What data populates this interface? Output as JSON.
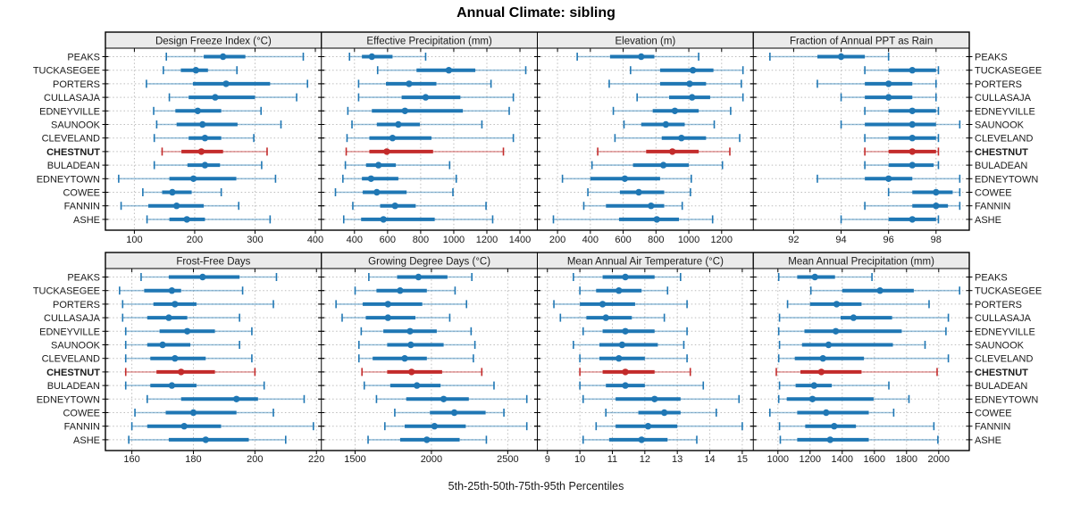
{
  "title": "Annual Climate: sibling",
  "caption": "5th-25th-50th-75th-95th Percentiles",
  "sites": [
    "PEAKS",
    "TUCKASEGEE",
    "PORTERS",
    "CULLASAJA",
    "EDNEYVILLE",
    "SAUNOOK",
    "CLEVELAND",
    "CHESTNUT",
    "BULADEAN",
    "EDNEYTOWN",
    "COWEE",
    "FANNIN",
    "ASHE"
  ],
  "highlight_site": "CHESTNUT",
  "colors": {
    "series": "#1f77b4",
    "series_whisker": "rgba(31,119,180,0.45)",
    "highlight": "#c32b2b",
    "highlight_whisker": "rgba(195,43,43,0.45)",
    "strip_bg": "#ebebeb",
    "strip_border": "#000000",
    "panel_border": "#000000",
    "grid": "#bdbdbd",
    "tick_text": "#1a1a1a"
  },
  "chart_data": {
    "type": "interval-dotplot",
    "percentiles": [
      5,
      25,
      50,
      75,
      95
    ],
    "site_order": [
      "PEAKS",
      "TUCKASEGEE",
      "PORTERS",
      "CULLASAJA",
      "EDNEYVILLE",
      "SAUNOOK",
      "CLEVELAND",
      "CHESTNUT",
      "BULADEAN",
      "EDNEYTOWN",
      "COWEE",
      "FANNIN",
      "ASHE"
    ],
    "panels": [
      {
        "title": "Design Freeze Index (°C)",
        "row": "top",
        "ticks": [
          100,
          200,
          300,
          400
        ],
        "domain": [
          52,
          410
        ],
        "values": [
          [
            153,
            215,
            247,
            284,
            380
          ],
          [
            148,
            177,
            202,
            222,
            270
          ],
          [
            120,
            197,
            252,
            325,
            387
          ],
          [
            158,
            190,
            234,
            300,
            369
          ],
          [
            132,
            168,
            205,
            244,
            310
          ],
          [
            137,
            170,
            213,
            271,
            343
          ],
          [
            133,
            190,
            217,
            244,
            298
          ],
          [
            146,
            178,
            211,
            247,
            320
          ],
          [
            133,
            188,
            217,
            242,
            311
          ],
          [
            74,
            158,
            198,
            269,
            334
          ],
          [
            114,
            146,
            163,
            195,
            244
          ],
          [
            78,
            123,
            170,
            215,
            273
          ],
          [
            121,
            158,
            187,
            217,
            325
          ]
        ]
      },
      {
        "title": "Effective Precipitation (mm)",
        "row": "top",
        "ticks": [
          400,
          600,
          800,
          1000,
          1200,
          1400
        ],
        "domain": [
          200,
          1505
        ],
        "values": [
          [
            370,
            445,
            505,
            630,
            830
          ],
          [
            540,
            775,
            970,
            1130,
            1435
          ],
          [
            425,
            590,
            730,
            895,
            1225
          ],
          [
            425,
            685,
            830,
            1040,
            1360
          ],
          [
            360,
            505,
            705,
            1055,
            1335
          ],
          [
            385,
            535,
            665,
            795,
            1170
          ],
          [
            355,
            490,
            630,
            865,
            1360
          ],
          [
            350,
            490,
            595,
            875,
            1300
          ],
          [
            345,
            470,
            545,
            650,
            975
          ],
          [
            330,
            445,
            500,
            665,
            1015
          ],
          [
            285,
            450,
            535,
            715,
            995
          ],
          [
            390,
            555,
            645,
            770,
            1195
          ],
          [
            335,
            440,
            575,
            885,
            1235
          ]
        ]
      },
      {
        "title": "Elevation (m)",
        "row": "top",
        "ticks": [
          200,
          400,
          600,
          800,
          1000,
          1200
        ],
        "domain": [
          77,
          1393
        ],
        "values": [
          [
            320,
            520,
            710,
            790,
            1060
          ],
          [
            645,
            825,
            1025,
            1150,
            1330
          ],
          [
            515,
            825,
            1005,
            1105,
            1320
          ],
          [
            685,
            880,
            1020,
            1130,
            1330
          ],
          [
            540,
            780,
            915,
            1060,
            1255
          ],
          [
            605,
            710,
            860,
            975,
            1155
          ],
          [
            550,
            835,
            955,
            1105,
            1310
          ],
          [
            445,
            740,
            900,
            1060,
            1250
          ],
          [
            410,
            660,
            845,
            1000,
            1205
          ],
          [
            230,
            400,
            610,
            825,
            1015
          ],
          [
            385,
            580,
            695,
            850,
            1010
          ],
          [
            360,
            495,
            770,
            850,
            960
          ],
          [
            175,
            575,
            805,
            940,
            1145
          ]
        ]
      },
      {
        "title": "Fraction of Annual PPT as Rain",
        "row": "top",
        "ticks": [
          92,
          94,
          96,
          98
        ],
        "domain": [
          90.3,
          99.4
        ],
        "values": [
          [
            91,
            93,
            94,
            95,
            96
          ],
          [
            95,
            96,
            97,
            98,
            98.1
          ],
          [
            93,
            95,
            96,
            97,
            98
          ],
          [
            94,
            95,
            96,
            97,
            98
          ],
          [
            95,
            96,
            97,
            98,
            98.1
          ],
          [
            94,
            95,
            97,
            98,
            99
          ],
          [
            95,
            96,
            97,
            98,
            98.1
          ],
          [
            95,
            96,
            97,
            98,
            98.1
          ],
          [
            95,
            96,
            97,
            97.9,
            98.1
          ],
          [
            93,
            95,
            96,
            97,
            99
          ],
          [
            96,
            97,
            98,
            98.7,
            99
          ],
          [
            95,
            97,
            98,
            98.5,
            99
          ],
          [
            94,
            96,
            97,
            98,
            98.1
          ]
        ]
      },
      {
        "title": "Frost-Free Days",
        "row": "bottom",
        "ticks": [
          160,
          180,
          200,
          220
        ],
        "domain": [
          151.4,
          221.6
        ],
        "values": [
          [
            163,
            172,
            183,
            195,
            207
          ],
          [
            156,
            164,
            173,
            176,
            196
          ],
          [
            157,
            167,
            174,
            181,
            206
          ],
          [
            157,
            165,
            172,
            178,
            195
          ],
          [
            158,
            169,
            178,
            187,
            199
          ],
          [
            158,
            165,
            170,
            179,
            195
          ],
          [
            158,
            166,
            174,
            184,
            199
          ],
          [
            158,
            168,
            176,
            187,
            200
          ],
          [
            158,
            166,
            173,
            181,
            203
          ],
          [
            165,
            176,
            194,
            201,
            216
          ],
          [
            161,
            171,
            180,
            194,
            206
          ],
          [
            160,
            165,
            177,
            189,
            219
          ],
          [
            159,
            172,
            184,
            198,
            210
          ]
        ]
      },
      {
        "title": "Growing Degree Days (°C)",
        "row": "bottom",
        "ticks": [
          1500,
          2000,
          2500
        ],
        "domain": [
          1279,
          2694
        ],
        "values": [
          [
            1590,
            1775,
            1915,
            2105,
            2265
          ],
          [
            1500,
            1640,
            1795,
            1970,
            2155
          ],
          [
            1375,
            1550,
            1715,
            1940,
            2230
          ],
          [
            1415,
            1570,
            1715,
            1895,
            2120
          ],
          [
            1540,
            1685,
            1860,
            2035,
            2260
          ],
          [
            1525,
            1710,
            1865,
            2080,
            2285
          ],
          [
            1525,
            1615,
            1825,
            1970,
            2275
          ],
          [
            1545,
            1710,
            1870,
            2070,
            2330
          ],
          [
            1560,
            1730,
            1905,
            2060,
            2410
          ],
          [
            1640,
            1835,
            2080,
            2245,
            2625
          ],
          [
            1760,
            1990,
            2150,
            2355,
            2475
          ],
          [
            1695,
            1825,
            2020,
            2225,
            2625
          ],
          [
            1585,
            1795,
            1970,
            2185,
            2360
          ]
        ]
      },
      {
        "title": "Mean Annual Air Temperature (°C)",
        "row": "bottom",
        "ticks": [
          9,
          10,
          11,
          12,
          13,
          14,
          15
        ],
        "domain": [
          8.69,
          15.34
        ],
        "values": [
          [
            9.8,
            10.7,
            11.4,
            12.3,
            13.1
          ],
          [
            10.0,
            10.5,
            11.2,
            11.9,
            12.7
          ],
          [
            9.2,
            10.0,
            10.7,
            11.7,
            13.3
          ],
          [
            9.4,
            10.2,
            10.8,
            11.6,
            12.6
          ],
          [
            10.1,
            10.7,
            11.4,
            12.3,
            13.3
          ],
          [
            9.8,
            10.6,
            11.3,
            12.4,
            13.2
          ],
          [
            10.0,
            10.6,
            11.2,
            12.0,
            13.3
          ],
          [
            10.0,
            10.7,
            11.4,
            12.3,
            13.4
          ],
          [
            10.0,
            10.8,
            11.4,
            12.0,
            13.8
          ],
          [
            10.1,
            11.1,
            12.3,
            13.1,
            14.9
          ],
          [
            10.8,
            11.8,
            12.6,
            13.1,
            14.2
          ],
          [
            10.5,
            11.1,
            12.1,
            13.0,
            15.0
          ],
          [
            10.1,
            10.9,
            11.9,
            12.7,
            13.6
          ]
        ]
      },
      {
        "title": "Mean Annual Precipitation (mm)",
        "row": "bottom",
        "ticks": [
          1000,
          1200,
          1400,
          1600,
          1800,
          2000
        ],
        "domain": [
          847,
          2190
        ],
        "values": [
          [
            1005,
            1120,
            1230,
            1355,
            1585
          ],
          [
            1205,
            1400,
            1635,
            1845,
            2130
          ],
          [
            1060,
            1200,
            1365,
            1520,
            1940
          ],
          [
            1010,
            1390,
            1470,
            1710,
            2060
          ],
          [
            1005,
            1165,
            1360,
            1770,
            2045
          ],
          [
            1010,
            1150,
            1315,
            1715,
            1915
          ],
          [
            1005,
            1105,
            1280,
            1535,
            2060
          ],
          [
            990,
            1140,
            1270,
            1520,
            1990
          ],
          [
            1010,
            1110,
            1225,
            1335,
            1690
          ],
          [
            1005,
            1055,
            1215,
            1595,
            1815
          ],
          [
            950,
            1120,
            1300,
            1565,
            1720
          ],
          [
            1010,
            1170,
            1350,
            1485,
            1970
          ],
          [
            1015,
            1120,
            1325,
            1565,
            1995
          ]
        ]
      }
    ]
  }
}
